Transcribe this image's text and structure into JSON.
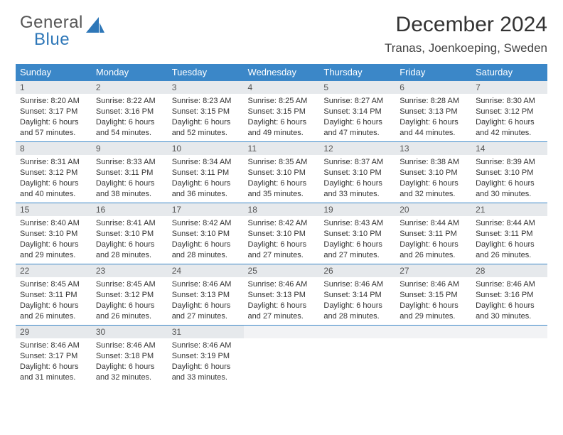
{
  "logo": {
    "line1": "General",
    "line2": "Blue"
  },
  "title": "December 2024",
  "location": "Tranas, Joenkoeping, Sweden",
  "colors": {
    "header_bg": "#3b87c8",
    "header_text": "#ffffff",
    "daynum_bg": "#e6e9ec",
    "border": "#3b87c8",
    "logo_blue": "#2e77b8",
    "body_text": "#333333"
  },
  "daysOfWeek": [
    "Sunday",
    "Monday",
    "Tuesday",
    "Wednesday",
    "Thursday",
    "Friday",
    "Saturday"
  ],
  "weeks": [
    [
      {
        "n": "1",
        "sr": "8:20 AM",
        "ss": "3:17 PM",
        "h": "6",
        "m": "57"
      },
      {
        "n": "2",
        "sr": "8:22 AM",
        "ss": "3:16 PM",
        "h": "6",
        "m": "54"
      },
      {
        "n": "3",
        "sr": "8:23 AM",
        "ss": "3:15 PM",
        "h": "6",
        "m": "52"
      },
      {
        "n": "4",
        "sr": "8:25 AM",
        "ss": "3:15 PM",
        "h": "6",
        "m": "49"
      },
      {
        "n": "5",
        "sr": "8:27 AM",
        "ss": "3:14 PM",
        "h": "6",
        "m": "47"
      },
      {
        "n": "6",
        "sr": "8:28 AM",
        "ss": "3:13 PM",
        "h": "6",
        "m": "44"
      },
      {
        "n": "7",
        "sr": "8:30 AM",
        "ss": "3:12 PM",
        "h": "6",
        "m": "42"
      }
    ],
    [
      {
        "n": "8",
        "sr": "8:31 AM",
        "ss": "3:12 PM",
        "h": "6",
        "m": "40"
      },
      {
        "n": "9",
        "sr": "8:33 AM",
        "ss": "3:11 PM",
        "h": "6",
        "m": "38"
      },
      {
        "n": "10",
        "sr": "8:34 AM",
        "ss": "3:11 PM",
        "h": "6",
        "m": "36"
      },
      {
        "n": "11",
        "sr": "8:35 AM",
        "ss": "3:10 PM",
        "h": "6",
        "m": "35"
      },
      {
        "n": "12",
        "sr": "8:37 AM",
        "ss": "3:10 PM",
        "h": "6",
        "m": "33"
      },
      {
        "n": "13",
        "sr": "8:38 AM",
        "ss": "3:10 PM",
        "h": "6",
        "m": "32"
      },
      {
        "n": "14",
        "sr": "8:39 AM",
        "ss": "3:10 PM",
        "h": "6",
        "m": "30"
      }
    ],
    [
      {
        "n": "15",
        "sr": "8:40 AM",
        "ss": "3:10 PM",
        "h": "6",
        "m": "29"
      },
      {
        "n": "16",
        "sr": "8:41 AM",
        "ss": "3:10 PM",
        "h": "6",
        "m": "28"
      },
      {
        "n": "17",
        "sr": "8:42 AM",
        "ss": "3:10 PM",
        "h": "6",
        "m": "28"
      },
      {
        "n": "18",
        "sr": "8:42 AM",
        "ss": "3:10 PM",
        "h": "6",
        "m": "27"
      },
      {
        "n": "19",
        "sr": "8:43 AM",
        "ss": "3:10 PM",
        "h": "6",
        "m": "27"
      },
      {
        "n": "20",
        "sr": "8:44 AM",
        "ss": "3:11 PM",
        "h": "6",
        "m": "26"
      },
      {
        "n": "21",
        "sr": "8:44 AM",
        "ss": "3:11 PM",
        "h": "6",
        "m": "26"
      }
    ],
    [
      {
        "n": "22",
        "sr": "8:45 AM",
        "ss": "3:11 PM",
        "h": "6",
        "m": "26"
      },
      {
        "n": "23",
        "sr": "8:45 AM",
        "ss": "3:12 PM",
        "h": "6",
        "m": "26"
      },
      {
        "n": "24",
        "sr": "8:46 AM",
        "ss": "3:13 PM",
        "h": "6",
        "m": "27"
      },
      {
        "n": "25",
        "sr": "8:46 AM",
        "ss": "3:13 PM",
        "h": "6",
        "m": "27"
      },
      {
        "n": "26",
        "sr": "8:46 AM",
        "ss": "3:14 PM",
        "h": "6",
        "m": "28"
      },
      {
        "n": "27",
        "sr": "8:46 AM",
        "ss": "3:15 PM",
        "h": "6",
        "m": "29"
      },
      {
        "n": "28",
        "sr": "8:46 AM",
        "ss": "3:16 PM",
        "h": "6",
        "m": "30"
      }
    ],
    [
      {
        "n": "29",
        "sr": "8:46 AM",
        "ss": "3:17 PM",
        "h": "6",
        "m": "31"
      },
      {
        "n": "30",
        "sr": "8:46 AM",
        "ss": "3:18 PM",
        "h": "6",
        "m": "32"
      },
      {
        "n": "31",
        "sr": "8:46 AM",
        "ss": "3:19 PM",
        "h": "6",
        "m": "33"
      },
      null,
      null,
      null,
      null
    ]
  ]
}
